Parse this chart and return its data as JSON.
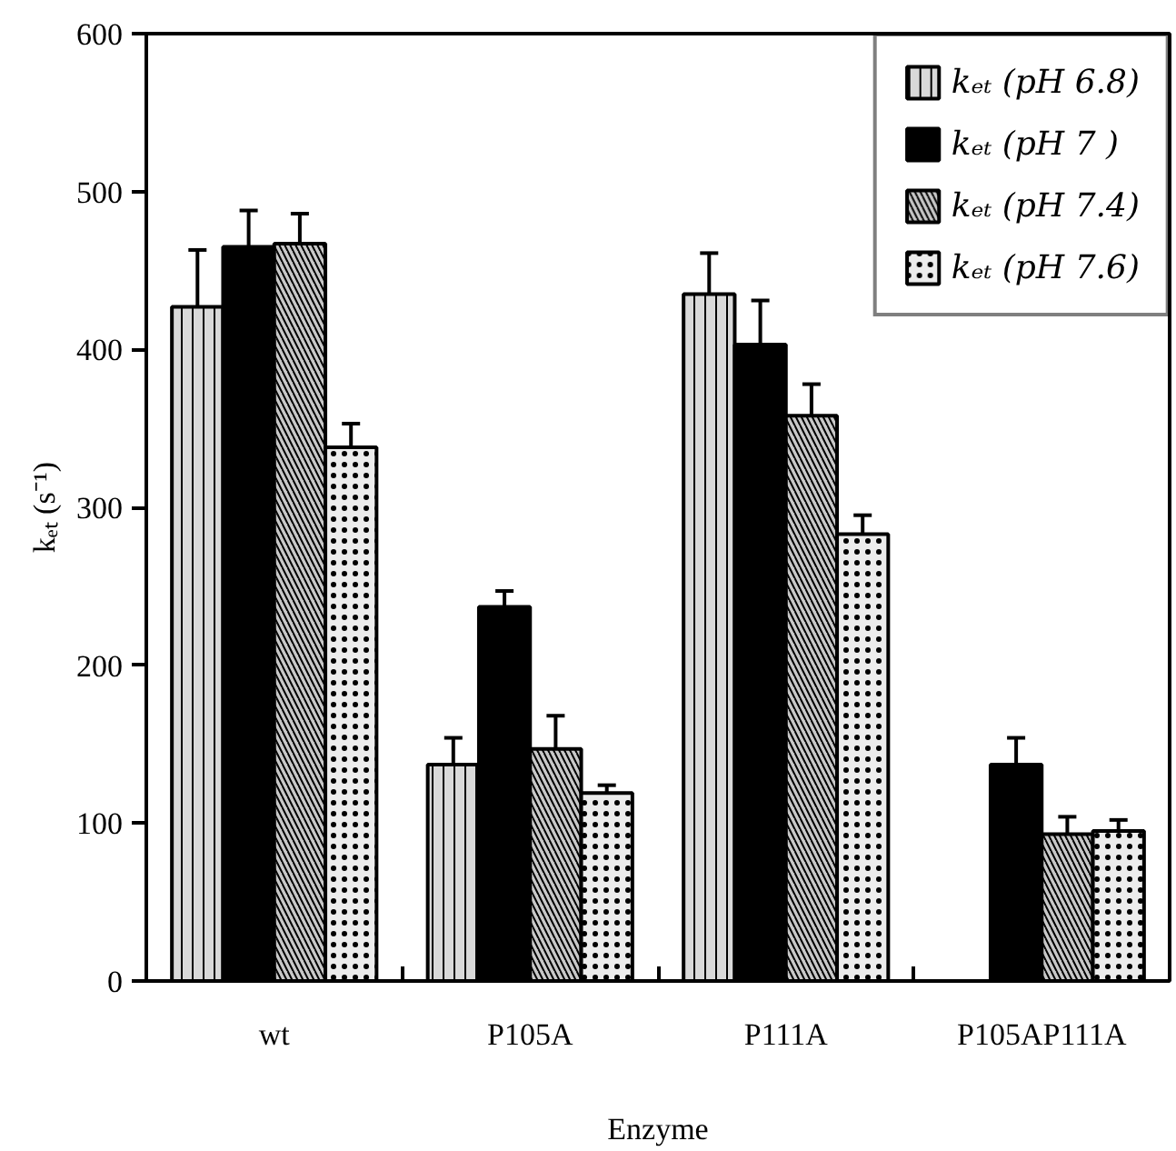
{
  "chart_data": {
    "type": "bar",
    "xlabel": "Enzyme",
    "ylabel": "kₑₜ (s⁻¹)",
    "categories": [
      "wt",
      "P105A",
      "P111A",
      "P105AP111A"
    ],
    "series": [
      {
        "name": "kₑₜ (pH 6.8)",
        "color": "#d9d9d9",
        "values": [
          427,
          137,
          435,
          null
        ],
        "errors": [
          36,
          17,
          26,
          null
        ]
      },
      {
        "name": "kₑₜ (pH 7 )",
        "color": "#000000",
        "values": [
          465,
          237,
          403,
          137
        ],
        "errors": [
          23,
          10,
          28,
          17
        ]
      },
      {
        "name": "kₑₜ (pH 7.4)",
        "color": "#c8c8c8",
        "values": [
          467,
          147,
          358,
          93
        ],
        "errors": [
          19,
          21,
          20,
          11
        ]
      },
      {
        "name": "kₑₜ (pH 7.6)",
        "color": "#ececec",
        "values": [
          338,
          119,
          283,
          95
        ],
        "errors": [
          15,
          5,
          12,
          7
        ]
      }
    ],
    "ylim": [
      0,
      600
    ],
    "yticks": [
      0,
      100,
      200,
      300,
      400,
      500,
      600
    ],
    "grid": false,
    "legend": "top right"
  }
}
